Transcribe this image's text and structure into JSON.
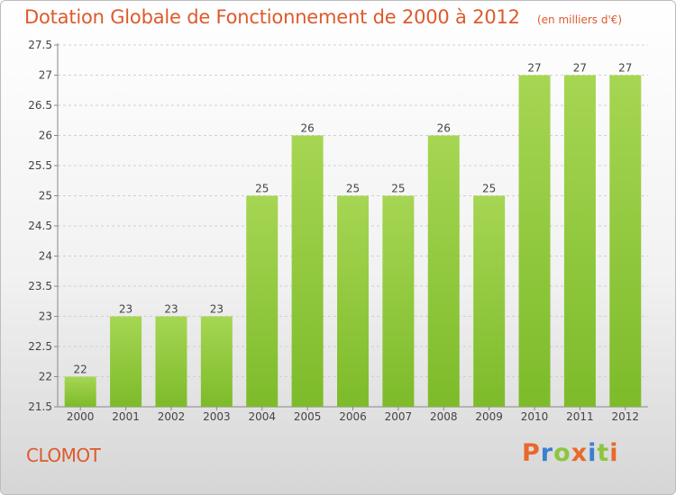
{
  "header": {
    "title": "Dotation Globale de Fonctionnement de 2000 à 2012",
    "subtitle": "(en milliers d'€)"
  },
  "footer": {
    "commune": "CLOMOT",
    "logo_letters": [
      "P",
      "r",
      "o",
      "x",
      "i",
      "t",
      "i"
    ],
    "logo_colors": [
      "#e8692a",
      "#3b7fd1",
      "#8cc63f",
      "#e8692a",
      "#3b7fd1",
      "#8cc63f",
      "#e8692a"
    ]
  },
  "chart_data": {
    "type": "bar",
    "categories": [
      "2000",
      "2001",
      "2002",
      "2003",
      "2004",
      "2005",
      "2006",
      "2007",
      "2008",
      "2009",
      "2010",
      "2011",
      "2012"
    ],
    "values": [
      22,
      23,
      23,
      23,
      25,
      26,
      25,
      25,
      26,
      25,
      27,
      27,
      27
    ],
    "data_labels": [
      "22",
      "23",
      "23",
      "23",
      "25",
      "26",
      "25",
      "25",
      "26",
      "25",
      "27",
      "27",
      "27"
    ],
    "ylim": [
      21.5,
      27.5
    ],
    "yticks": [
      21.5,
      22,
      22.5,
      23,
      23.5,
      24,
      24.5,
      25,
      25.5,
      26,
      26.5,
      27,
      27.5
    ],
    "ytick_labels": [
      "21.5",
      "22",
      "22.5",
      "23",
      "23.5",
      "24",
      "24.5",
      "25",
      "25.5",
      "26",
      "26.5",
      "27",
      "27.5"
    ],
    "grid": true,
    "bar_color": "#7dbb2a",
    "bar_color_light": "#a6d653"
  }
}
